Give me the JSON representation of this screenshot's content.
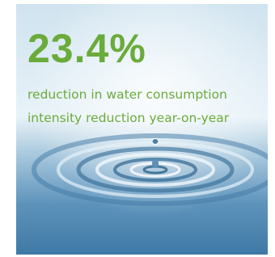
{
  "stat": {
    "value": "23.4%",
    "description": [
      "reduction in water consumption",
      "intensity reduction year-on-year"
    ]
  }
}
